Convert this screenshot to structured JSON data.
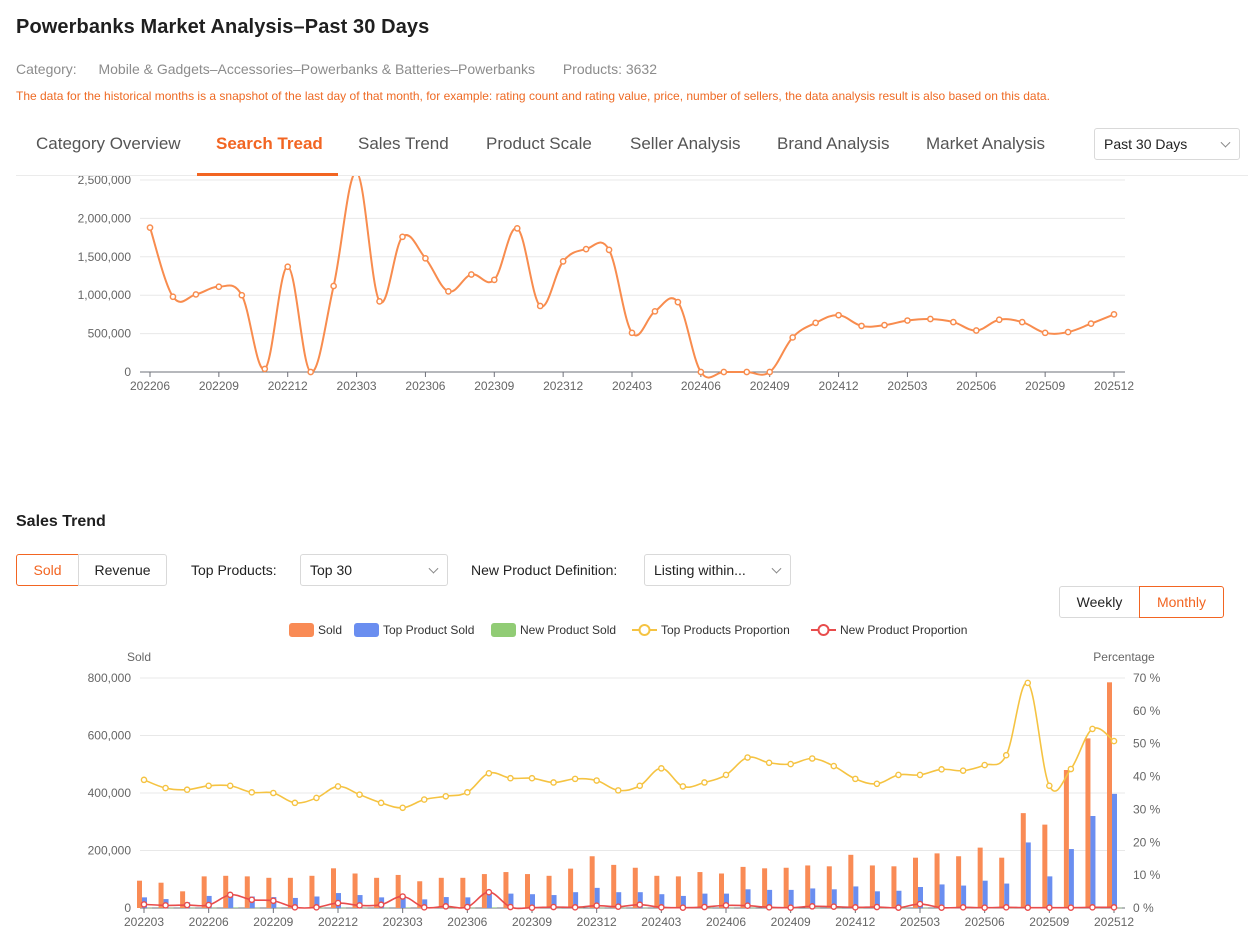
{
  "header": {
    "title": "Powerbanks Market Analysis–Past 30 Days",
    "category_label": "Category:",
    "category_value": "Mobile & Gadgets–Accessories–Powerbanks & Batteries–Powerbanks",
    "products_label": "Products:",
    "products_value": "3632",
    "note": "The data for the historical months is a snapshot of the last day of that month, for example: rating count and rating value, price, number of sellers, the data analysis result is also based on this data."
  },
  "tabs": [
    {
      "label": "Category Overview",
      "active": false
    },
    {
      "label": "Search Tread",
      "active": true
    },
    {
      "label": "Sales Trend",
      "active": false
    },
    {
      "label": "Product Scale",
      "active": false
    },
    {
      "label": "Seller Analysis",
      "active": false
    },
    {
      "label": "Brand Analysis",
      "active": false
    },
    {
      "label": "Market Analysis",
      "active": false
    }
  ],
  "period_select": {
    "value": "Past 30 Days"
  },
  "sales_section": {
    "title": "Sales Trend",
    "metric_buttons": [
      {
        "label": "Sold",
        "active": true
      },
      {
        "label": "Revenue",
        "active": false
      }
    ],
    "top_products_label": "Top Products:",
    "top_products_value": "Top 30",
    "new_product_label": "New Product Definition:",
    "new_product_value": "Listing within...",
    "granularity_buttons": [
      {
        "label": "Weekly",
        "active": false
      },
      {
        "label": "Monthly",
        "active": true
      }
    ]
  },
  "colors": {
    "accent": "#f26522",
    "sold": "#f98b55",
    "top_sold": "#6a8ef0",
    "new_sold": "#91cc75",
    "top_prop": "#f5c342",
    "new_prop": "#e84c4c",
    "search_line": "#f88c4e"
  },
  "chart_data": [
    {
      "type": "line",
      "title": "",
      "xlabel": "",
      "ylabel": "",
      "ylim": [
        0,
        2500000
      ],
      "yticks": [
        "0",
        "500,000",
        "1,000,000",
        "1,500,000",
        "2,000,000",
        "2,500,000"
      ],
      "x_tick_labels": [
        "202206",
        "202209",
        "202212",
        "202303",
        "202306",
        "202309",
        "202312",
        "202403",
        "202406",
        "202409",
        "202412",
        "202503",
        "202506",
        "202509",
        "202512"
      ],
      "x": [
        "202206",
        "202207",
        "202208",
        "202209",
        "202210",
        "202211",
        "202212",
        "202301",
        "202302",
        "202303",
        "202304",
        "202305",
        "202306",
        "202307",
        "202308",
        "202309",
        "202310",
        "202311",
        "202312",
        "202401",
        "202402",
        "202403",
        "202404",
        "202405",
        "202406",
        "202407",
        "202408",
        "202409",
        "202410",
        "202411",
        "202412",
        "202501",
        "202502",
        "202503",
        "202504",
        "202505",
        "202506",
        "202507",
        "202508",
        "202509",
        "202510",
        "202511",
        "202512"
      ],
      "series": [
        {
          "values": [
            1880000,
            980000,
            1010000,
            1110000,
            1000000,
            40000,
            1370000,
            0,
            1120000,
            2600000,
            920000,
            1760000,
            1480000,
            1050000,
            1270000,
            1200000,
            1870000,
            860000,
            1440000,
            1600000,
            1590000,
            510000,
            790000,
            910000,
            0,
            0,
            0,
            0,
            450000,
            640000,
            740000,
            600000,
            610000,
            670000,
            690000,
            650000,
            540000,
            680000,
            650000,
            510000,
            520000,
            630000,
            750000
          ]
        }
      ]
    },
    {
      "type": "bar",
      "title": "",
      "xlabel": "",
      "ylabel": "Sold",
      "y2label": "Percentage",
      "ylim": [
        0,
        800000
      ],
      "y2lim": [
        0,
        70
      ],
      "yticks": [
        "0",
        "200,000",
        "400,000",
        "600,000",
        "800,000"
      ],
      "y2ticks": [
        "0 %",
        "10 %",
        "20 %",
        "30 %",
        "40 %",
        "50 %",
        "60 %",
        "70 %"
      ],
      "x_tick_labels": [
        "202203",
        "202206",
        "202209",
        "202212",
        "202303",
        "202306",
        "202309",
        "202312",
        "202403",
        "202406",
        "202409",
        "202412",
        "202503",
        "202506",
        "202509",
        "202512"
      ],
      "legend": [
        "Sold",
        "Top Product Sold",
        "New Product Sold",
        "Top Products Proportion",
        "New Product Proportion"
      ],
      "x": [
        "202203",
        "202204",
        "202205",
        "202206",
        "202207",
        "202208",
        "202209",
        "202210",
        "202211",
        "202212",
        "202301",
        "202302",
        "202303",
        "202304",
        "202305",
        "202306",
        "202307",
        "202308",
        "202309",
        "202310",
        "202311",
        "202312",
        "202401",
        "202402",
        "202403",
        "202404",
        "202405",
        "202406",
        "202407",
        "202408",
        "202409",
        "202410",
        "202411",
        "202412",
        "202501",
        "202502",
        "202503",
        "202504",
        "202505",
        "202506",
        "202507",
        "202508",
        "202509",
        "202510",
        "202511",
        "202512"
      ],
      "series": [
        {
          "name": "Sold",
          "kind": "bar",
          "axis": "left",
          "values": [
            95000,
            88000,
            58000,
            110000,
            112000,
            110000,
            105000,
            105000,
            112000,
            138000,
            120000,
            105000,
            115000,
            93000,
            105000,
            105000,
            118000,
            125000,
            118000,
            112000,
            137000,
            180000,
            150000,
            140000,
            112000,
            110000,
            125000,
            120000,
            143000,
            138000,
            140000,
            148000,
            145000,
            185000,
            148000,
            145000,
            175000,
            190000,
            180000,
            210000,
            175000,
            330000,
            290000,
            480000,
            590000,
            785000
          ]
        },
        {
          "name": "Top Product Sold",
          "kind": "bar",
          "axis": "left",
          "values": [
            37000,
            31000,
            20000,
            42000,
            42000,
            40000,
            38000,
            35000,
            40000,
            52000,
            45000,
            37000,
            40000,
            30000,
            38000,
            37000,
            58000,
            50000,
            48000,
            45000,
            55000,
            70000,
            55000,
            55000,
            48000,
            42000,
            50000,
            50000,
            65000,
            63000,
            63000,
            68000,
            65000,
            75000,
            58000,
            60000,
            73000,
            82000,
            78000,
            95000,
            85000,
            228000,
            110000,
            205000,
            320000,
            397000
          ]
        },
        {
          "name": "New Product Sold",
          "kind": "bar",
          "axis": "left",
          "values": [
            1000,
            1000,
            1000,
            1000,
            2000,
            1000,
            1000,
            1000,
            1000,
            1000,
            1000,
            1000,
            2000,
            1000,
            1000,
            1000,
            2000,
            1000,
            1000,
            1000,
            1000,
            1000,
            1000,
            1000,
            1000,
            1000,
            1000,
            1000,
            1000,
            1000,
            1000,
            1000,
            1000,
            1000,
            1000,
            1000,
            1000,
            1000,
            1000,
            1000,
            1000,
            1000,
            1000,
            1000,
            1000,
            1000
          ]
        },
        {
          "name": "Top Products Proportion",
          "kind": "line",
          "axis": "right",
          "values": [
            39,
            36.5,
            36,
            37.2,
            37.2,
            35.2,
            35,
            32,
            33.5,
            37,
            34.5,
            32,
            30.5,
            33,
            34,
            35.2,
            41,
            39.5,
            39.5,
            38.2,
            39.3,
            38.8,
            35.8,
            37.2,
            42.5,
            37,
            38.2,
            40.5,
            45.8,
            44.2,
            43.8,
            45.5,
            43.2,
            39.3,
            37.8,
            40.5,
            40.5,
            42.2,
            41.8,
            43.5,
            46.5,
            68.5,
            37.2,
            42.3,
            54.5,
            50.8
          ]
        },
        {
          "name": "New Product Proportion",
          "kind": "line",
          "axis": "right",
          "values": [
            1.1,
            0.8,
            0.9,
            0.9,
            4,
            2.5,
            2.2,
            0.2,
            0.2,
            1.5,
            0.8,
            1,
            3.5,
            0.2,
            0.5,
            0.3,
            4.8,
            0.3,
            0.1,
            0.3,
            0.2,
            0.7,
            0.4,
            1,
            0.2,
            0.1,
            0.3,
            0.8,
            0.7,
            0.2,
            0.1,
            0.5,
            0.4,
            0.2,
            0.3,
            0.1,
            1.2,
            0.1,
            0.2,
            0.1,
            0.2,
            0.1,
            0.1,
            0.1,
            0.2,
            0.2
          ]
        }
      ]
    }
  ]
}
